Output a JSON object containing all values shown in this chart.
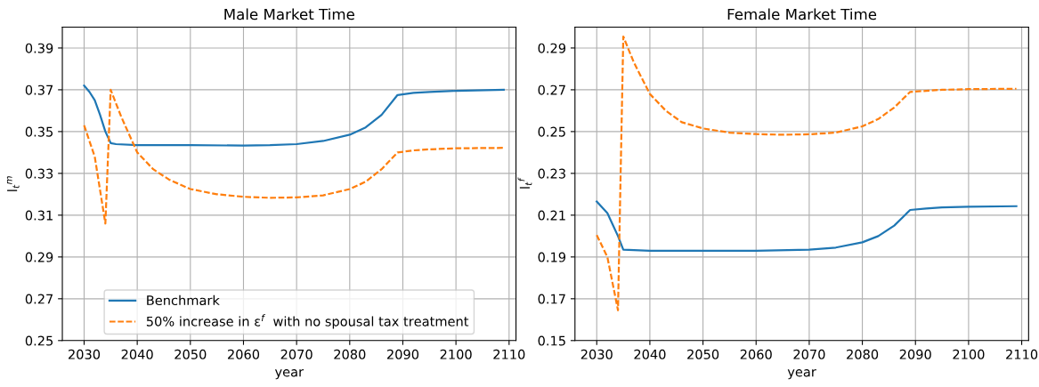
{
  "chart_data": [
    {
      "type": "line",
      "title": "Male Market Time",
      "xlabel": "year",
      "ylabel": "l$_{t}$$^{m}$",
      "xlim": [
        2025.9,
        2111.3
      ],
      "xticks": [
        2030,
        2040,
        2050,
        2060,
        2070,
        2080,
        2090,
        2100,
        2110
      ],
      "ylim": [
        0.25,
        0.4
      ],
      "yticks": [
        0.25,
        0.27,
        0.29,
        0.31,
        0.33,
        0.35,
        0.37,
        0.39
      ],
      "grid": true,
      "legend": "bottom",
      "series": [
        {
          "name": "Benchmark",
          "color": "#1f77b4",
          "line_style": "solid",
          "x": [
            2030,
            2031,
            2032,
            2033,
            2034,
            2035,
            2036,
            2040,
            2050,
            2060,
            2065,
            2070,
            2075,
            2080,
            2083,
            2086,
            2089,
            2092,
            2095,
            2100,
            2109
          ],
          "values": [
            0.372,
            0.369,
            0.365,
            0.358,
            0.35,
            0.3445,
            0.344,
            0.3435,
            0.3435,
            0.3433,
            0.3435,
            0.344,
            0.3455,
            0.3485,
            0.352,
            0.358,
            0.3675,
            0.3685,
            0.369,
            0.3695,
            0.37
          ]
        },
        {
          "name": "50% increase in ε$^{f}$  with no spousal tax treatment",
          "color": "#ff7f0e",
          "line_style": "dashed",
          "x": [
            2030,
            2032,
            2034,
            2035,
            2037,
            2040,
            2043,
            2046,
            2050,
            2055,
            2060,
            2065,
            2070,
            2075,
            2080,
            2083,
            2086,
            2089,
            2092,
            2095,
            2100,
            2109
          ],
          "values": [
            0.353,
            0.338,
            0.306,
            0.37,
            0.357,
            0.34,
            0.332,
            0.327,
            0.3225,
            0.32,
            0.3188,
            0.3183,
            0.3185,
            0.3195,
            0.3225,
            0.326,
            0.332,
            0.34,
            0.341,
            0.3415,
            0.342,
            0.3422
          ]
        }
      ]
    },
    {
      "type": "line",
      "title": "Female Market Time",
      "xlabel": "year",
      "ylabel": "l$_{t}$$^{f}$",
      "xlim": [
        2025.9,
        2111.3
      ],
      "xticks": [
        2030,
        2040,
        2050,
        2060,
        2070,
        2080,
        2090,
        2100,
        2110
      ],
      "ylim": [
        0.15,
        0.3
      ],
      "yticks": [
        0.15,
        0.17,
        0.19,
        0.21,
        0.23,
        0.25,
        0.27,
        0.29
      ],
      "grid": true,
      "series": [
        {
          "color": "#1f77b4",
          "line_style": "solid",
          "x": [
            2030,
            2032,
            2034,
            2035,
            2040,
            2050,
            2060,
            2070,
            2075,
            2080,
            2083,
            2086,
            2089,
            2092,
            2095,
            2100,
            2109
          ],
          "values": [
            0.2165,
            0.211,
            0.2,
            0.1935,
            0.193,
            0.193,
            0.193,
            0.1935,
            0.1945,
            0.197,
            0.2,
            0.205,
            0.2125,
            0.2132,
            0.2137,
            0.214,
            0.2143
          ]
        },
        {
          "color": "#ff7f0e",
          "line_style": "dashed",
          "x": [
            2030,
            2032,
            2034,
            2035,
            2037,
            2040,
            2043,
            2046,
            2050,
            2055,
            2060,
            2065,
            2070,
            2075,
            2080,
            2083,
            2086,
            2089,
            2092,
            2095,
            2100,
            2109
          ],
          "values": [
            0.2005,
            0.19,
            0.1645,
            0.2955,
            0.283,
            0.268,
            0.26,
            0.2545,
            0.2515,
            0.2495,
            0.2488,
            0.2485,
            0.2487,
            0.2495,
            0.2525,
            0.256,
            0.2615,
            0.269,
            0.2695,
            0.27,
            0.2703,
            0.2705
          ]
        }
      ]
    }
  ]
}
